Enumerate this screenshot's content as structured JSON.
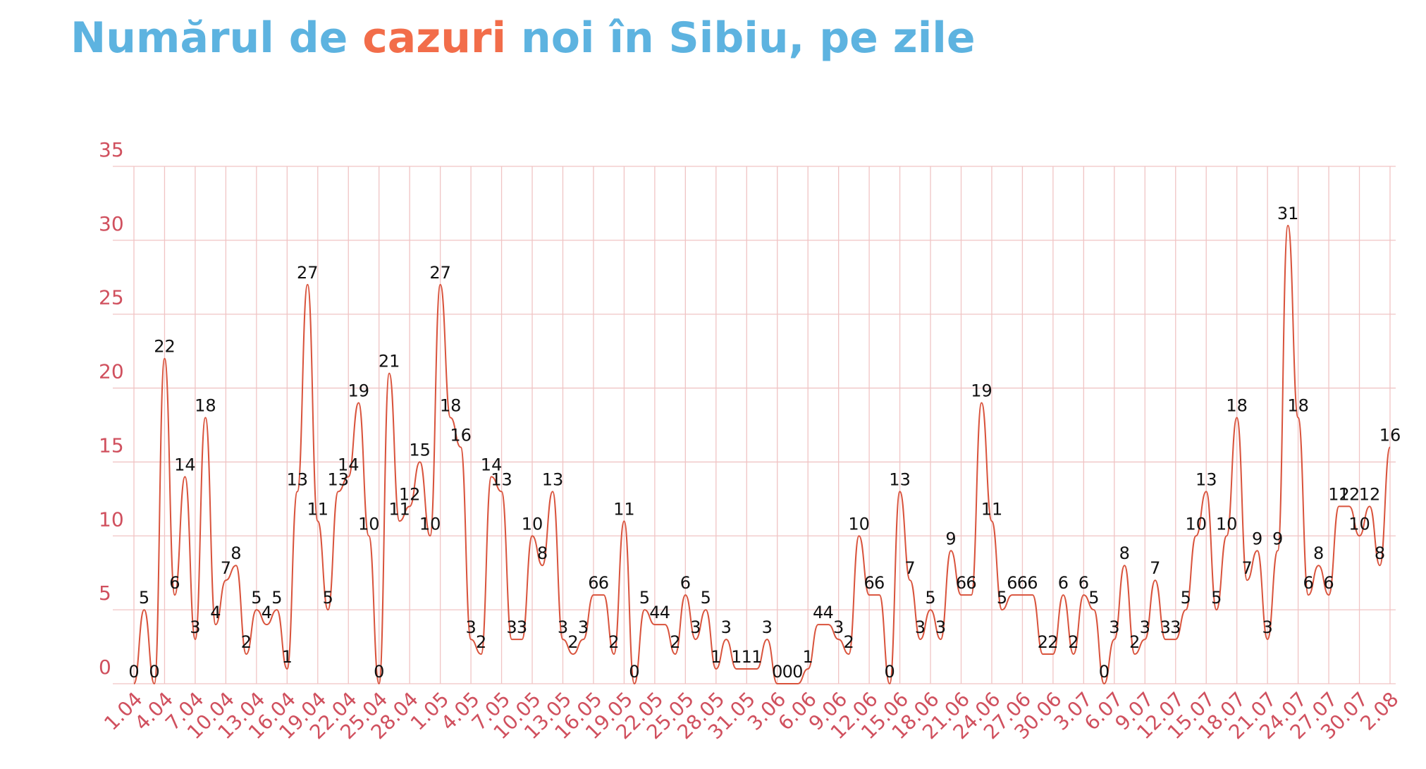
{
  "chart_data": {
    "type": "line",
    "title": [
      "Numărul de ",
      "cazuri",
      " noi în Sibiu, pe zile"
    ],
    "title_colors": [
      "#5db3e0",
      "#f26d4a",
      "#5db3e0"
    ],
    "color": "#d9533c",
    "categories": [
      "1.04",
      null,
      null,
      "4.04",
      null,
      null,
      "7.04",
      null,
      null,
      "10.04",
      null,
      null,
      "13.04",
      null,
      null,
      "16.04",
      null,
      null,
      "19.04",
      null,
      null,
      "22.04",
      null,
      null,
      "25.04",
      null,
      null,
      "28.04",
      null,
      null,
      "1.05",
      null,
      null,
      "4.05",
      null,
      null,
      "7.05",
      null,
      null,
      "10.05",
      null,
      null,
      "13.05",
      null,
      null,
      "16.05",
      null,
      null,
      "19.05",
      null,
      null,
      "22.05",
      null,
      null,
      "25.05",
      null,
      null,
      "28.05",
      null,
      null,
      "31.05",
      null,
      null,
      "3.06",
      null,
      null,
      "6.06",
      null,
      null,
      "9.06",
      null,
      null,
      "12.06",
      null,
      null,
      "15.06",
      null,
      null,
      "18.06",
      null,
      null,
      "21.06",
      null,
      null,
      "24.06",
      null,
      null,
      "27.06",
      null,
      null,
      "30.06",
      null,
      null,
      "3.07",
      null,
      null,
      "6.07",
      null,
      null,
      "9.07",
      null,
      null,
      "12.07",
      null,
      null,
      "15.07",
      null,
      null,
      "18.07",
      null,
      null,
      "21.07",
      null,
      null,
      "24.07",
      null,
      null,
      "27.07",
      null,
      null,
      "30.07",
      null,
      null,
      "2.08"
    ],
    "values": [
      0,
      5,
      0,
      22,
      6,
      14,
      3,
      18,
      4,
      7,
      8,
      2,
      5,
      4,
      5,
      1,
      13,
      27,
      11,
      5,
      13,
      14,
      19,
      10,
      0,
      21,
      11,
      12,
      15,
      10,
      27,
      18,
      16,
      3,
      2,
      14,
      13,
      3,
      3,
      10,
      8,
      13,
      3,
      2,
      3,
      6,
      6,
      2,
      11,
      0,
      5,
      4,
      4,
      2,
      6,
      3,
      5,
      1,
      3,
      1,
      1,
      1,
      3,
      0,
      0,
      0,
      1,
      4,
      4,
      3,
      2,
      10,
      6,
      6,
      0,
      13,
      7,
      3,
      5,
      3,
      9,
      6,
      6,
      19,
      11,
      5,
      6,
      6,
      6,
      2,
      2,
      6,
      2,
      6,
      5,
      0,
      3,
      8,
      2,
      3,
      7,
      3,
      3,
      5,
      10,
      13,
      5,
      10,
      18,
      7,
      9,
      3,
      9,
      31,
      18,
      6,
      8,
      6,
      12,
      12,
      10,
      12,
      8,
      16
    ],
    "ylim": [
      0,
      35
    ],
    "yticks": [
      0,
      5,
      10,
      15,
      20,
      25,
      30,
      35
    ],
    "grid": true
  }
}
